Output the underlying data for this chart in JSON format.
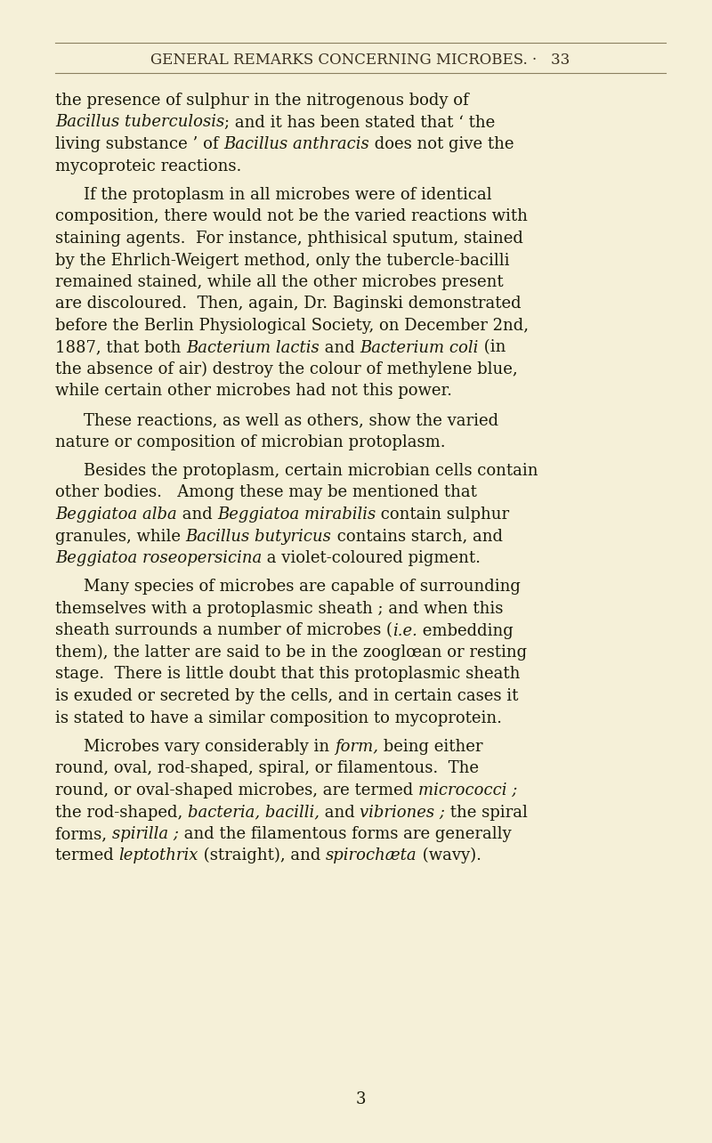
{
  "background_color": "#f5f0d8",
  "header_text": "GENERAL REMARKS CONCERNING MICROBES. ·   33",
  "header_fontsize": 12,
  "header_color": "#3a3020",
  "text_color": "#1a1a0a",
  "italic_color": "#1a1a0a",
  "page_number": "3",
  "font_size": 13.0,
  "paragraphs": [
    {
      "indent": false,
      "lines": [
        "the presence of sulphur in the nitrogenous body of",
        "~Bacillus tuberculosis~; and it has been stated that ‘ the",
        "living substance ’ of ~Bacillus anthracis~ does not give the",
        "mycoproteic reactions."
      ]
    },
    {
      "indent": true,
      "lines": [
        "If the protoplasm in all microbes were of identical",
        "composition, there would not be the varied reactions with",
        "staining agents.  For instance, phthisical sputum, stained",
        "by the Ehrlich-Weigert method, only the tubercle-bacilli",
        "remained stained, while all the other microbes present",
        "are discoloured.  Then, again, Dr. Baginski demonstrated",
        "before the Berlin Physiological Society, on December 2nd,",
        "1887, that both ~Bacterium lactis~ and ~Bacterium coli~ (in",
        "the absence of air) destroy the colour of methylene blue,",
        "while certain other microbes had not this power."
      ]
    },
    {
      "indent": true,
      "lines": [
        "These reactions, as well as others, show the varied",
        "nature or composition of microbian protoplasm."
      ]
    },
    {
      "indent": true,
      "lines": [
        "Besides the protoplasm, certain microbian cells contain",
        "other bodies.   Among these may be mentioned that",
        "~Beggiatoa alba~ and ~Beggiatoa mirabilis~ contain sulphur",
        "granules, while ~Bacillus butyricus~ contains starch, and",
        "~Beggiatoa roseopersicina~ a violet-coloured pigment."
      ]
    },
    {
      "indent": true,
      "lines": [
        "Many species of microbes are capable of surrounding",
        "themselves with a protoplasmic sheath ; and when this",
        "sheath surrounds a number of microbes (~i.e.~ embedding",
        "them), the latter are said to be in the zooglœan or resting",
        "stage.  There is little doubt that this protoplasmic sheath",
        "is exuded or secreted by the cells, and in certain cases it",
        "is stated to have a similar composition to mycoprotein."
      ]
    },
    {
      "indent": true,
      "lines": [
        "Microbes vary considerably in ~form,~ being either",
        "round, oval, rod-shaped, spiral, or filamentous.  The",
        "round, or oval-shaped microbes, are termed ~micrococci ;~",
        "the rod-shaped, ~bacteria, bacilli,~ and ~vibriones ;~ the spiral",
        "forms, ~spirilla ;~ and the filamentous forms are generally",
        "termed ~leptothrix~ (straight), and ~spirochæta~ (wavy)."
      ]
    }
  ]
}
